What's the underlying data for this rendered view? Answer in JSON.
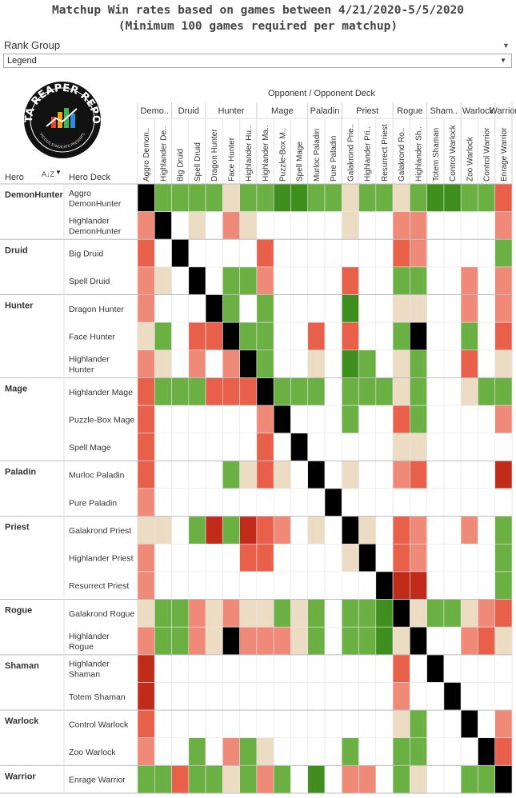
{
  "title": {
    "line1": "Matchup Win rates based on games between 4/21/2020-5/5/2020",
    "line2": "(Minimum 100 games required per matchup)"
  },
  "filter": {
    "label": "Rank Group",
    "value": "Legend"
  },
  "logo": {
    "text": "DATA REAPER REPORT",
    "subtext": "VICIOUS SYNDICATE PRESENTS"
  },
  "headers": {
    "opponent_title": "Opponent  /  Opponent Deck",
    "hero": "Hero",
    "hero_deck": "Hero Deck"
  },
  "colors": {
    "black": "#000000",
    "dark_green": "#3f8f1f",
    "green": "#6bb042",
    "light_green": "#a8d67a",
    "beige": "#ebdcc3",
    "light_red": "#f08a78",
    "red": "#e8604a",
    "dark_red": "#c12b1a",
    "blank": "#ffffff"
  },
  "chart_data": {
    "type": "heatmap",
    "color_scale": "win rate: green = favored, beige = even, red = unfavored, black = mirror",
    "column_groups": [
      {
        "name": "Demo..",
        "count": 2
      },
      {
        "name": "Druid",
        "count": 2
      },
      {
        "name": "Hunter",
        "count": 3
      },
      {
        "name": "Mage",
        "count": 3
      },
      {
        "name": "Paladin",
        "count": 2
      },
      {
        "name": "Priest",
        "count": 3
      },
      {
        "name": "Rogue",
        "count": 2
      },
      {
        "name": "Sham..",
        "count": 2
      },
      {
        "name": "Warlock",
        "count": 2
      },
      {
        "name": "Warrior",
        "count": 1
      }
    ],
    "columns": [
      "Aggro Demon..",
      "Highlander De..",
      "Big Druid",
      "Spell Druid",
      "Dragon Hunter",
      "Face Hunter",
      "Highlander Hu..",
      "Highlander Ma..",
      "Puzzle-Box M..",
      "Spell Mage",
      "Murloc Paladin",
      "Pure Paladin",
      "Galakrond Prie..",
      "Highlander Pri..",
      "Resurrect Priest",
      "Galakrond Ro..",
      "Highlander Sh..",
      "Totem Shaman",
      "Control Warlock",
      "Zoo Warlock",
      "Control Warrior",
      "Enrage Warrior"
    ],
    "row_groups": [
      {
        "name": "DemonHunter",
        "count": 2
      },
      {
        "name": "Druid",
        "count": 2
      },
      {
        "name": "Hunter",
        "count": 3
      },
      {
        "name": "Mage",
        "count": 3
      },
      {
        "name": "Paladin",
        "count": 2
      },
      {
        "name": "Priest",
        "count": 3
      },
      {
        "name": "Rogue",
        "count": 2
      },
      {
        "name": "Shaman",
        "count": 2
      },
      {
        "name": "Warlock",
        "count": 2
      },
      {
        "name": "Warrior",
        "count": 1
      }
    ],
    "rows": [
      {
        "label": [
          "Aggro",
          "DemonHunter"
        ],
        "cells": "KGGGGEGGDDGGEGGEGDDGGR"
      },
      {
        "label": [
          "Highlander",
          "DemonHunter"
        ],
        "cells": "LKWEWLEWWWWWEWWLLWWWWL"
      },
      {
        "label": [
          "Big Druid"
        ],
        "cells": "RWKWWWWRWWWWWWWRLWWWWG"
      },
      {
        "label": [
          "Spell Druid"
        ],
        "cells": "LEWKWGGLWWWWRWWGGWWLWL"
      },
      {
        "label": [
          "Dragon Hunter"
        ],
        "cells": "LWWWKGWGWWWWDWWEEWWLWL"
      },
      {
        "label": [
          "Face Hunter"
        ],
        "cells": "EGWRRKGGWWRWRWWGKWWGWR"
      },
      {
        "label": [
          "Highlander",
          "Hunter"
        ],
        "cells": "LEWLWLKGWWEWDGWEGWWRWE"
      },
      {
        "label": [
          "Highlander Mage"
        ],
        "cells": "RGGGRRRKGGGWGGGEGWWEGG"
      },
      {
        "label": [
          "Puzzle-Box Mage"
        ],
        "cells": "RWWWWWWLKWWWGWWRGWWWWL"
      },
      {
        "label": [
          "Spell Mage"
        ],
        "cells": "RWWWWWWRWKWWWWWEEWWWWW"
      },
      {
        "label": [
          "Murloc Paladin"
        ],
        "cells": "RWWWWGEREWKWEWWLRWWWWX"
      },
      {
        "label": [
          "Pure Paladin"
        ],
        "cells": "LWWWWWWWWWWKWWWWWWWWWW"
      },
      {
        "label": [
          "Galakrond Priest"
        ],
        "cells": "EEWGXGXRLWEWKEWRLWWLWG"
      },
      {
        "label": [
          "Highlander Priest"
        ],
        "cells": "LWWWWWRRWWWWEKWRLWWWWG"
      },
      {
        "label": [
          "Resurrect Priest"
        ],
        "cells": "LWWWWWWWWWWWWWKXXWWWWG"
      },
      {
        "label": [
          "Galakrond Rogue"
        ],
        "cells": "EGGLELEEGEGWGGDKEGGELR"
      },
      {
        "label": [
          "Highlander",
          "Rogue"
        ],
        "cells": "LGGLEKLLLEGWGGDEKWWLRE"
      },
      {
        "label": [
          "Highlander",
          "Shaman"
        ],
        "cells": "XWWWWWWWWWWWWWWRWKWWWW"
      },
      {
        "label": [
          "Totem Shaman"
        ],
        "cells": "XWWWWWWWWWWWWWWLWWKWWW"
      },
      {
        "label": [
          "Control Warlock"
        ],
        "cells": "RWWWWWWWWWWWWWWEGWWKWL"
      },
      {
        "label": [
          "Zoo Warlock"
        ],
        "cells": "LWWGWLGEWWWWGWWGGWWWKR"
      },
      {
        "label": [
          "Enrage Warrior"
        ],
        "cells": "GGRGGEGLGWDWLLWGEWWGGK"
      }
    ],
    "legend": {
      "K": "mirror",
      "D": "strongly favored",
      "G": "favored",
      "F": "slightly favored",
      "E": "even",
      "L": "slightly unfavored",
      "R": "unfavored",
      "X": "strongly unfavored",
      "W": "no data"
    }
  }
}
